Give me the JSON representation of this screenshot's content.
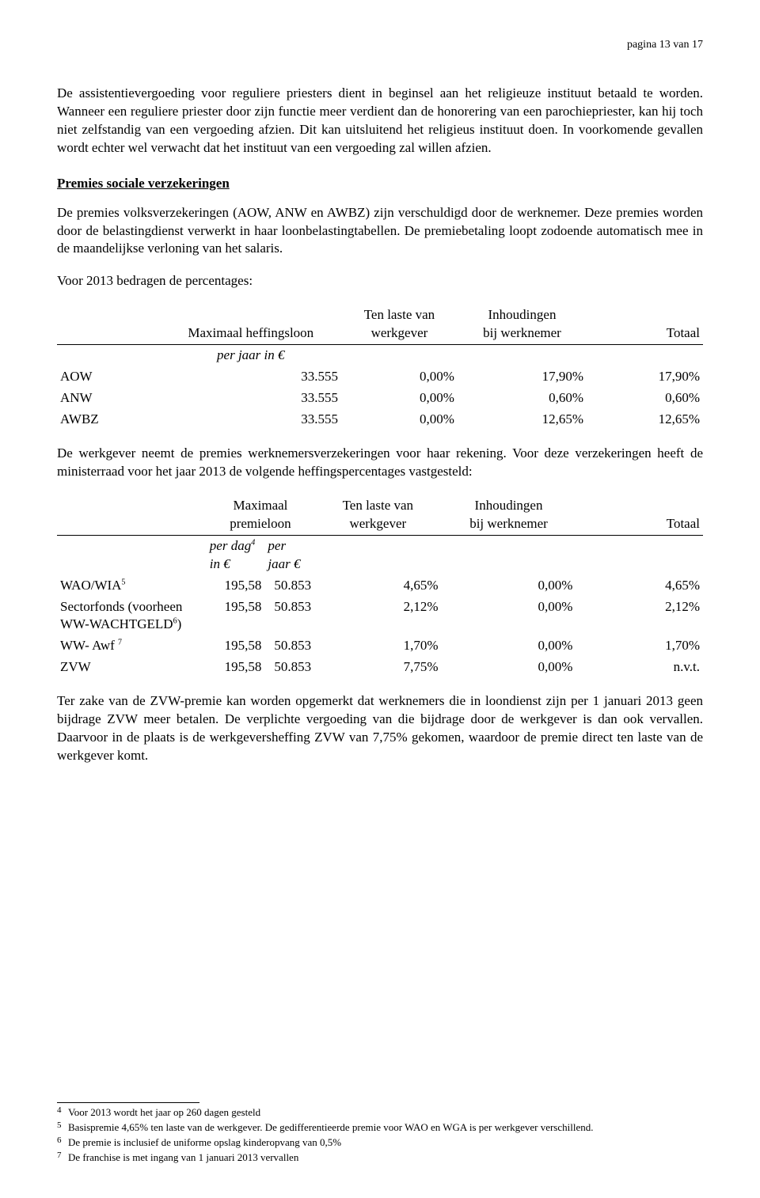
{
  "page_number": "pagina 13 van 17",
  "paras": {
    "p1": "De assistentievergoeding voor reguliere priesters dient in beginsel aan het religieuze instituut betaald te worden. Wanneer een reguliere priester door zijn functie meer verdient dan de honorering van een parochiepriester, kan hij toch niet zelfstandig van een vergoeding afzien. Dit kan uitsluitend het religieus instituut doen. In voorkomende gevallen wordt echter wel verwacht dat het instituut van een vergoeding zal willen afzien.",
    "h1": "Premies sociale verzekeringen",
    "p2": "De premies volksverzekeringen (AOW, ANW en AWBZ) zijn verschuldigd door de werknemer. Deze premies worden door de belastingdienst verwerkt in haar loonbelastingtabellen. De premiebetaling loopt zodoende automatisch mee in de maandelijkse verloning van het salaris.",
    "p3": "Voor 2013 bedragen de percentages:",
    "p4": "De werkgever neemt de premies werknemersverzekeringen voor haar rekening. Voor deze verzekeringen heeft de ministerraad voor het jaar 2013 de volgende heffingspercentages vastgesteld:",
    "p5": "Ter zake van de ZVW-premie kan worden opgemerkt dat werknemers die in loondienst zijn per 1 januari 2013 geen bijdrage ZVW meer betalen. De verplichte vergoeding van die bijdrage door de werkgever is dan ook vervallen. Daarvoor in de plaats is de werkgeversheffing ZVW van 7,75% gekomen, waardoor de premie direct ten laste van de werkgever komt."
  },
  "table1": {
    "h_max": "Maximaal heffingsloon",
    "h_wk1": "Ten laste van",
    "h_wk2": "werkgever",
    "h_wn1": "Inhoudingen",
    "h_wn2": "bij werknemer",
    "h_tot": "Totaal",
    "unit": "per jaar in €",
    "rows": [
      {
        "label": "AOW",
        "max": "33.555",
        "wk": "0,00%",
        "wn": "17,90%",
        "tot": "17,90%"
      },
      {
        "label": "ANW",
        "max": "33.555",
        "wk": "0,00%",
        "wn": "0,60%",
        "tot": "0,60%"
      },
      {
        "label": "AWBZ",
        "max": "33.555",
        "wk": "0,00%",
        "wn": "12,65%",
        "tot": "12,65%"
      }
    ]
  },
  "table2": {
    "h_max": "Maximaal premieloon",
    "h_wk1": "Ten laste van",
    "h_wk2": "werkgever",
    "h_wn1": "Inhoudingen",
    "h_wn2": "bij werknemer",
    "h_tot": "Totaal",
    "unit_pd_pre": "per dag",
    "unit_pd_sup": "4",
    "unit_pd_post": " in €",
    "unit_pj": "per jaar €",
    "rows": [
      {
        "label_pre": "WAO/WIA",
        "label_sup": "5",
        "label_post": "",
        "pd": "195,58",
        "pj": "50.853",
        "wk": "4,65%",
        "wn": "0,00%",
        "tot": "4,65%"
      },
      {
        "label_pre": "Sectorfonds (voorheen WW-WACHTGELD",
        "label_sup": "6",
        "label_post": ")",
        "pd": "195,58",
        "pj": "50.853",
        "wk": "2,12%",
        "wn": "0,00%",
        "tot": "2,12%"
      },
      {
        "label_pre": "WW- Awf ",
        "label_sup": "7",
        "label_post": "",
        "pd": "195,58",
        "pj": "50.853",
        "wk": "1,70%",
        "wn": "0,00%",
        "tot": "1,70%"
      },
      {
        "label_pre": "ZVW",
        "label_sup": "",
        "label_post": "",
        "pd": "195,58",
        "pj": "50.853",
        "wk": "7,75%",
        "wn": "0,00%",
        "tot": "n.v.t."
      }
    ]
  },
  "footnotes": [
    {
      "n": "4",
      "t": "Voor 2013 wordt het jaar op 260 dagen gesteld"
    },
    {
      "n": "5",
      "t": "Basispremie 4,65% ten laste van de werkgever. De gedifferentieerde premie voor WAO en WGA is per werkgever verschillend."
    },
    {
      "n": "6",
      "t": "De premie is inclusief de uniforme opslag kinderopvang van 0,5%"
    },
    {
      "n": "7",
      "t": "De franchise is met ingang van 1 januari 2013 vervallen"
    }
  ]
}
